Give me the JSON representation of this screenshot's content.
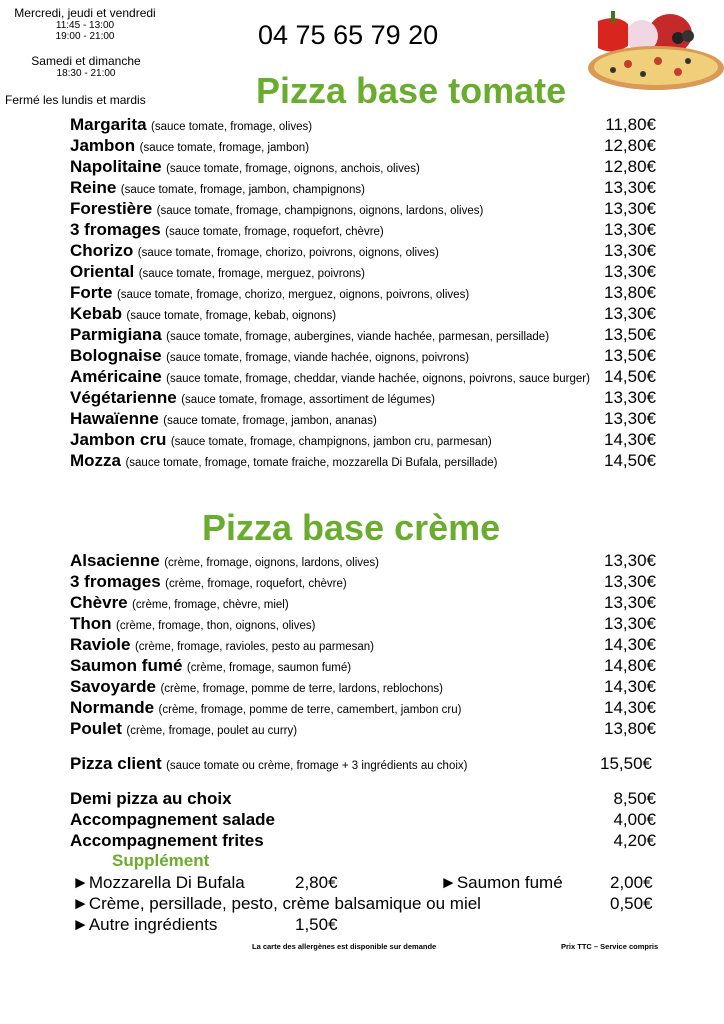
{
  "hours": {
    "weekdays": "Mercredi, jeudi et vendredi",
    "weekday_lunch": "11:45 - 13:00",
    "weekday_dinner": "19:00 - 21:00",
    "weekend": "Samedi et dimanche",
    "weekend_dinner": "18:30 - 21:00",
    "closed": "Fermé les lundis et mardis"
  },
  "phone": "04 75 65 79 20",
  "tomato": {
    "title": "Pizza base tomate",
    "items": [
      {
        "name": "Margarita",
        "desc": "(sauce tomate, fromage, olives)",
        "price": "11,80€"
      },
      {
        "name": "Jambon",
        "desc": "(sauce tomate, fromage, jambon)",
        "price": "12,80€"
      },
      {
        "name": "Napolitaine",
        "desc": "(sauce tomate, fromage, oignons, anchois, olives)",
        "price": "12,80€"
      },
      {
        "name": "Reine",
        "desc": "(sauce tomate, fromage, jambon, champignons)",
        "price": "13,30€"
      },
      {
        "name": "Forestière",
        "desc": "(sauce tomate, fromage, champignons, oignons, lardons, olives)",
        "price": "13,30€"
      },
      {
        "name": "3 fromages",
        "desc": "(sauce tomate, fromage, roquefort, chèvre)",
        "price": "13,30€"
      },
      {
        "name": "Chorizo",
        "desc": "(sauce tomate, fromage, chorizo, poivrons, oignons, olives)",
        "price": "13,30€"
      },
      {
        "name": "Oriental",
        "desc": "(sauce tomate, fromage, merguez, poivrons)",
        "price": "13,30€"
      },
      {
        "name": "Forte",
        "desc": "(sauce tomate, fromage, chorizo, merguez, oignons, poivrons, olives)",
        "price": "13,80€"
      },
      {
        "name": "Kebab",
        "desc": "(sauce tomate, fromage, kebab, oignons)",
        "price": "13,30€"
      },
      {
        "name": "Parmigiana",
        "desc": "(sauce tomate, fromage, aubergines, viande hachée, parmesan, persillade)",
        "price": "13,50€"
      },
      {
        "name": "Bolognaise",
        "desc": "(sauce tomate, fromage, viande hachée, oignons, poivrons)",
        "price": "13,50€"
      },
      {
        "name": "Américaine",
        "desc": "(sauce tomate, fromage, cheddar, viande hachée, oignons, poivrons, sauce burger)",
        "price": "14,50€"
      },
      {
        "name": "Végétarienne",
        "desc": "(sauce tomate, fromage, assortiment de légumes)",
        "price": "13,30€"
      },
      {
        "name": "Hawaïenne",
        "desc": "(sauce tomate, fromage, jambon, ananas)",
        "price": "13,30€"
      },
      {
        "name": "Jambon cru",
        "desc": "(sauce tomate, fromage, champignons, jambon cru, parmesan)",
        "price": "14,30€"
      },
      {
        "name": "Mozza",
        "desc": "(sauce tomate, fromage, tomate fraiche, mozzarella Di Bufala, persillade)",
        "price": "14,50€"
      }
    ]
  },
  "cream": {
    "title": "Pizza base crème",
    "items": [
      {
        "name": "Alsacienne",
        "desc": "(crème, fromage, oignons, lardons, olives)",
        "price": "13,30€"
      },
      {
        "name": "3 fromages",
        "desc": "(crème, fromage, roquefort, chèvre)",
        "price": "13,30€"
      },
      {
        "name": "Chèvre",
        "desc": "(crème, fromage, chèvre, miel)",
        "price": "13,30€"
      },
      {
        "name": "Thon",
        "desc": "(crème, fromage, thon, oignons, olives)",
        "price": "13,30€"
      },
      {
        "name": "Raviole",
        "desc": "(crème, fromage, ravioles, pesto au parmesan)",
        "price": "14,30€"
      },
      {
        "name": "Saumon fumé",
        "desc": "(crème, fromage, saumon fumé)",
        "price": "14,80€"
      },
      {
        "name": "Savoyarde",
        "desc": "(crème, fromage, pomme de terre, lardons, reblochons)",
        "price": "14,30€"
      },
      {
        "name": "Normande",
        "desc": "(crème, fromage, pomme de terre, camembert, jambon cru)",
        "price": "14,30€"
      },
      {
        "name": "Poulet",
        "desc": "(crème, fromage, poulet au curry)",
        "price": "13,80€"
      }
    ]
  },
  "client": {
    "name": "Pizza client",
    "desc": "(sauce tomate ou crème, fromage + 3 ingrédients au choix)",
    "price": "15,50€"
  },
  "extras": [
    {
      "name": "Demi pizza au choix",
      "price": "8,50€"
    },
    {
      "name": "Accompagnement salade",
      "price": "4,00€"
    },
    {
      "name": "Accompagnement frites",
      "price": "4,20€"
    }
  ],
  "supplement": {
    "title": "Supplément",
    "bullet": "►",
    "mozza": {
      "name": "Mozzarella Di Bufala",
      "price": "2,80€"
    },
    "saumon": {
      "name": "Saumon fumé",
      "price": "2,00€"
    },
    "creme": {
      "name": "Crème, persillade, pesto, crème balsamique ou miel",
      "price": "0,50€"
    },
    "autre": {
      "name": "Autre ingrédients",
      "price": "1,50€"
    }
  },
  "footer": {
    "allergens": "La carte des allergènes est disponible sur demande",
    "prices": "Prix TTC – Service compris"
  },
  "colors": {
    "accent": "#6aad2e"
  }
}
